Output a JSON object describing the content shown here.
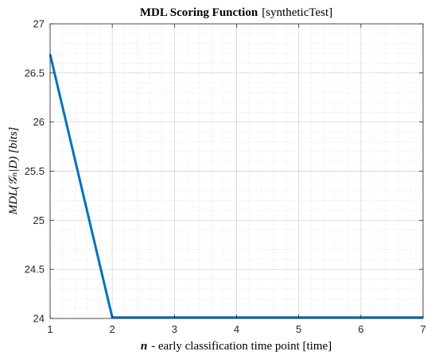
{
  "chart_data": {
    "type": "line",
    "title_bold": "MDL Scoring Function",
    "title_rest": "[syntheticTest]",
    "xlabel_var": "n",
    "xlabel_rest": "- early classification time point [time]",
    "ylabel": "MDL(𝒢ₙ|D) [bits]",
    "xlim": [
      1,
      7
    ],
    "ylim": [
      24,
      27
    ],
    "xticks": [
      "1",
      "2",
      "3",
      "4",
      "5",
      "6",
      "7"
    ],
    "yticks": [
      "24",
      "24.5",
      "25",
      "25.5",
      "26",
      "26.5",
      "27"
    ],
    "grid": true,
    "minor_grid": true,
    "series": [
      {
        "color": "#0072BD",
        "x": [
          1,
          2,
          3,
          4,
          5,
          6,
          7
        ],
        "y": [
          26.69,
          24.01,
          24.01,
          24.01,
          24.01,
          24.01,
          24.01
        ]
      }
    ]
  }
}
